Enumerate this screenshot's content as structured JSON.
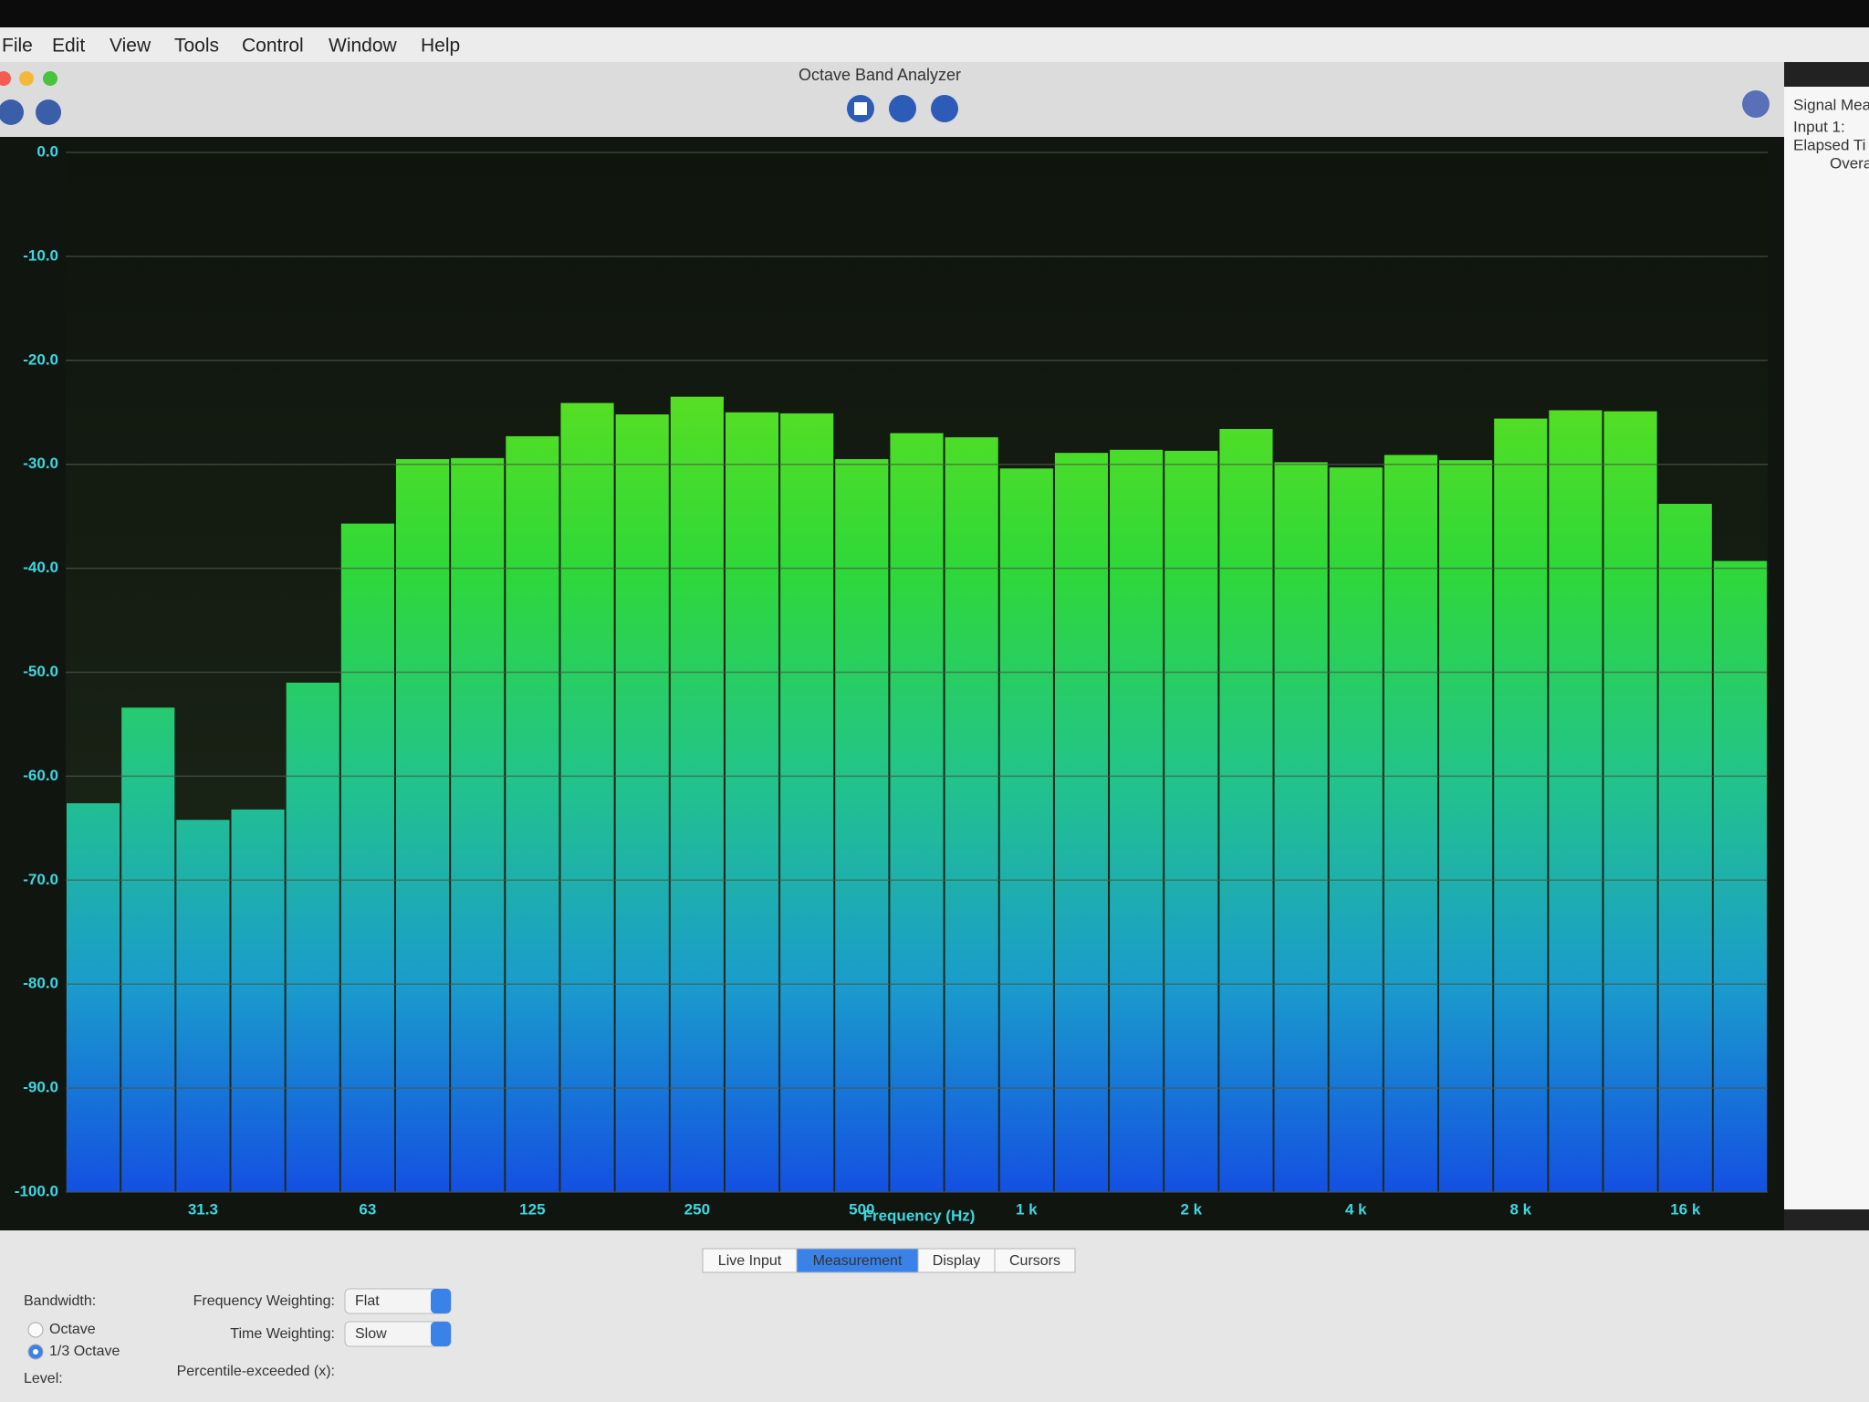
{
  "menu": [
    "File",
    "Edit",
    "View",
    "Tools",
    "Control",
    "Window",
    "Help"
  ],
  "window_title": "Octave Band Analyzer",
  "side_panel": [
    "Signal Mea",
    "Input 1:",
    "Elapsed Ti",
    "Overa"
  ],
  "chart_data": {
    "type": "bar",
    "x_label": "Frequency (Hz)",
    "categories": [
      null,
      null,
      "31.3",
      null,
      null,
      "63",
      null,
      null,
      "125",
      null,
      null,
      "250",
      null,
      null,
      "500",
      null,
      null,
      "1 k",
      null,
      null,
      "2 k",
      null,
      null,
      "4 k",
      null,
      null,
      "8 k",
      null,
      null,
      "16 k",
      null
    ],
    "values": [
      -62.6,
      -53.4,
      -64.2,
      -63.2,
      -51.0,
      -35.7,
      -29.5,
      -29.4,
      -27.3,
      -24.1,
      -25.2,
      -23.5,
      -25.0,
      -25.1,
      -29.5,
      -27.0,
      -27.4,
      -30.4,
      -28.9,
      -28.6,
      -28.7,
      -26.6,
      -29.8,
      -30.3,
      -29.1,
      -29.6,
      -25.6,
      -24.8,
      -24.9,
      -33.8,
      -39.3
    ],
    "ylim": [
      -100,
      0
    ],
    "yticks": [
      {
        "value": 0,
        "label": "0.0"
      },
      {
        "value": -10,
        "label": "-10.0"
      },
      {
        "value": -20,
        "label": "-20.0"
      },
      {
        "value": -30,
        "label": "-30.0"
      },
      {
        "value": -40,
        "label": "-40.0"
      },
      {
        "value": -50,
        "label": "-50.0"
      },
      {
        "value": -60,
        "label": "-60.0"
      },
      {
        "value": -70,
        "label": "-70.0"
      },
      {
        "value": -80,
        "label": "-80.0"
      },
      {
        "value": -90,
        "label": "-90.0"
      },
      {
        "value": -100,
        "label": "-100.0"
      }
    ],
    "grid": true,
    "gradient_colors": [
      "#86e41e",
      "#5fe020",
      "#2fd838",
      "#22c48a",
      "#1a9ccc",
      "#1450e2"
    ]
  },
  "tabs": [
    "Live Input",
    "Measurement",
    "Display",
    "Cursors"
  ],
  "selected_tab": 1,
  "controls": {
    "bandwidth_label": "Bandwidth:",
    "bandwidth_options": [
      "Octave",
      "1/3 Octave"
    ],
    "bandwidth_selected": 1,
    "level_label": "Level:",
    "frequency_weighting_label": "Frequency Weighting:",
    "frequency_weighting": "Flat",
    "time_weighting_label": "Time Weighting:",
    "time_weighting": "Slow",
    "percentile_label": "Percentile-exceeded (x):"
  }
}
